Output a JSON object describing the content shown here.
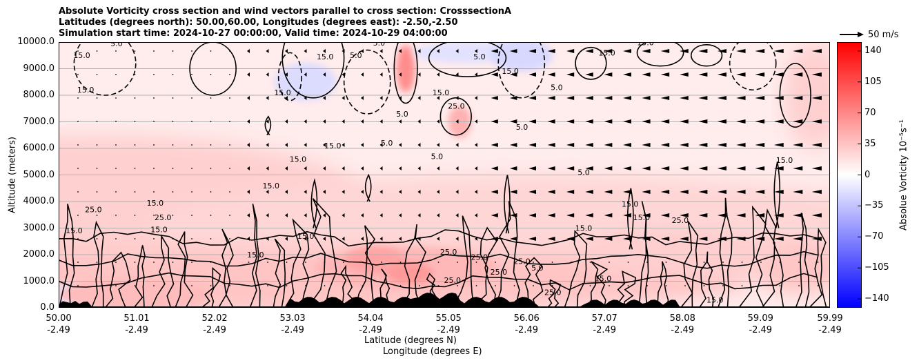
{
  "chart_data": {
    "type": "contourf-cross-section",
    "title_lines": [
      "Absolute Vorticity cross section and wind vectors parallel to cross section: CrosssectionA",
      "Latitudes (degrees north): 50.00,60.00, Longitudes (degrees east): -2.50,-2.50",
      "Simulation start time: 2024-10-27 00:00:00, Valid time: 2024-10-29 04:00:00"
    ],
    "ylabel": "Altitude (meters)",
    "xlabel_lat": "Latitude (degrees N)",
    "xlabel_lon": "Longitude (degrees E)",
    "ylim": [
      0,
      10000
    ],
    "xlim": [
      50.0,
      59.99
    ],
    "y_ticks": [
      "0.0",
      "1000.0",
      "2000.0",
      "3000.0",
      "4000.0",
      "5000.0",
      "6000.0",
      "7000.0",
      "8000.0",
      "9000.0",
      "10000.0"
    ],
    "y_tick_values": [
      0,
      1000,
      2000,
      3000,
      4000,
      5000,
      6000,
      7000,
      8000,
      9000,
      10000
    ],
    "x_ticks": [
      {
        "value": 50.0,
        "lat": "50.00",
        "lon": "-2.49"
      },
      {
        "value": 51.01,
        "lat": "51.01",
        "lon": "-2.49"
      },
      {
        "value": 52.02,
        "lat": "52.02",
        "lon": "-2.49"
      },
      {
        "value": 53.03,
        "lat": "53.03",
        "lon": "-2.49"
      },
      {
        "value": 54.04,
        "lat": "54.04",
        "lon": "-2.49"
      },
      {
        "value": 55.05,
        "lat": "55.05",
        "lon": "-2.49"
      },
      {
        "value": 56.06,
        "lat": "56.06",
        "lon": "-2.49"
      },
      {
        "value": 57.07,
        "lat": "57.07",
        "lon": "-2.49"
      },
      {
        "value": 58.08,
        "lat": "58.08",
        "lon": "-2.49"
      },
      {
        "value": 59.09,
        "lat": "59.09",
        "lon": "-2.49"
      },
      {
        "value": 59.99,
        "lat": "59.99",
        "lon": "-2.49"
      }
    ],
    "grid": "horizontal",
    "colorbar": {
      "label": "Absolue Vorticity 10⁻⁵s⁻¹",
      "range": [
        -150,
        150
      ],
      "ticks": [
        "140",
        "105",
        "70",
        "35",
        "0",
        "−35",
        "−70",
        "−105",
        "−140"
      ],
      "tick_values": [
        140,
        105,
        70,
        35,
        0,
        -35,
        -70,
        -105,
        -140
      ],
      "colormap": "bwr",
      "color_low": "#0000ff",
      "color_mid": "#ffffff",
      "color_high": "#ff0000"
    },
    "quiver_key": {
      "label": "50 m/s"
    },
    "contour_labels": [
      {
        "text": "15.0",
        "x": 50.3,
        "y": 9400
      },
      {
        "text": "5.0",
        "x": 50.75,
        "y": 9850
      },
      {
        "text": "15.0",
        "x": 50.35,
        "y": 8100
      },
      {
        "text": "15.0",
        "x": 52.9,
        "y": 8000
      },
      {
        "text": "15.0",
        "x": 53.45,
        "y": 9350
      },
      {
        "text": "5.0",
        "x": 53.85,
        "y": 9400
      },
      {
        "text": "5.0",
        "x": 54.15,
        "y": 9870
      },
      {
        "text": "5.0",
        "x": 55.45,
        "y": 9350
      },
      {
        "text": "15.0",
        "x": 55.85,
        "y": 8800
      },
      {
        "text": "5.0",
        "x": 56.45,
        "y": 8200
      },
      {
        "text": "15.0",
        "x": 57.6,
        "y": 9880
      },
      {
        "text": "15.0",
        "x": 57.1,
        "y": 9500
      },
      {
        "text": "15.0",
        "x": 54.95,
        "y": 8000
      },
      {
        "text": "25.0",
        "x": 55.15,
        "y": 7500
      },
      {
        "text": "5.0",
        "x": 54.45,
        "y": 7200
      },
      {
        "text": "5.0",
        "x": 56.0,
        "y": 6700
      },
      {
        "text": "15.0",
        "x": 53.55,
        "y": 6000
      },
      {
        "text": "5.0",
        "x": 54.25,
        "y": 6100
      },
      {
        "text": "5.0",
        "x": 54.9,
        "y": 5600
      },
      {
        "text": "15.0",
        "x": 53.1,
        "y": 5500
      },
      {
        "text": "15.0",
        "x": 52.75,
        "y": 4500
      },
      {
        "text": "5.0",
        "x": 56.8,
        "y": 5000
      },
      {
        "text": "15.0",
        "x": 57.4,
        "y": 3800
      },
      {
        "text": "15.0",
        "x": 57.55,
        "y": 3300
      },
      {
        "text": "25.0",
        "x": 58.05,
        "y": 3200
      },
      {
        "text": "15.0",
        "x": 56.8,
        "y": 2900
      },
      {
        "text": "15.0",
        "x": 59.4,
        "y": 5450
      },
      {
        "text": "15.0",
        "x": 50.2,
        "y": 2800
      },
      {
        "text": "25.0",
        "x": 50.45,
        "y": 3600
      },
      {
        "text": "15.0",
        "x": 51.25,
        "y": 3850
      },
      {
        "text": "25.0",
        "x": 51.35,
        "y": 3300
      },
      {
        "text": "15.0",
        "x": 51.3,
        "y": 2850
      },
      {
        "text": "15.0",
        "x": 52.55,
        "y": 1900
      },
      {
        "text": "15.0",
        "x": 53.2,
        "y": 2600
      },
      {
        "text": "25.0",
        "x": 55.05,
        "y": 2000
      },
      {
        "text": "25.0",
        "x": 55.45,
        "y": 1800
      },
      {
        "text": "25.0",
        "x": 56.0,
        "y": 1650
      },
      {
        "text": "5.0",
        "x": 56.2,
        "y": 1400
      },
      {
        "text": "25.0",
        "x": 55.7,
        "y": 1250
      },
      {
        "text": "25.0",
        "x": 55.1,
        "y": 930
      },
      {
        "text": "25.0",
        "x": 56.4,
        "y": 480
      },
      {
        "text": "15.0",
        "x": 57.05,
        "y": 1000
      },
      {
        "text": "15.0",
        "x": 58.5,
        "y": 200
      }
    ]
  }
}
